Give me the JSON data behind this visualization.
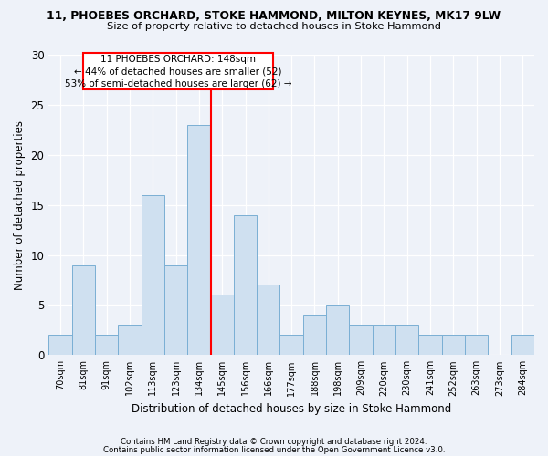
{
  "title1": "11, PHOEBES ORCHARD, STOKE HAMMOND, MILTON KEYNES, MK17 9LW",
  "title2": "Size of property relative to detached houses in Stoke Hammond",
  "xlabel": "Distribution of detached houses by size in Stoke Hammond",
  "ylabel": "Number of detached properties",
  "categories": [
    "70sqm",
    "81sqm",
    "91sqm",
    "102sqm",
    "113sqm",
    "123sqm",
    "134sqm",
    "145sqm",
    "156sqm",
    "166sqm",
    "177sqm",
    "188sqm",
    "198sqm",
    "209sqm",
    "220sqm",
    "230sqm",
    "241sqm",
    "252sqm",
    "263sqm",
    "273sqm",
    "284sqm"
  ],
  "values": [
    2,
    9,
    2,
    3,
    16,
    9,
    23,
    6,
    14,
    7,
    2,
    4,
    5,
    3,
    3,
    3,
    2,
    2,
    2,
    0,
    2
  ],
  "bar_color": "#cfe0f0",
  "bar_edge_color": "#7aafd4",
  "vline_index": 7,
  "annotation_lines": [
    "11 PHOEBES ORCHARD: 148sqm",
    "← 44% of detached houses are smaller (52)",
    "53% of semi-detached houses are larger (62) →"
  ],
  "ylim": [
    0,
    30
  ],
  "yticks": [
    0,
    5,
    10,
    15,
    20,
    25,
    30
  ],
  "footer1": "Contains HM Land Registry data © Crown copyright and database right 2024.",
  "footer2": "Contains public sector information licensed under the Open Government Licence v3.0.",
  "bg_color": "#eef2f9"
}
